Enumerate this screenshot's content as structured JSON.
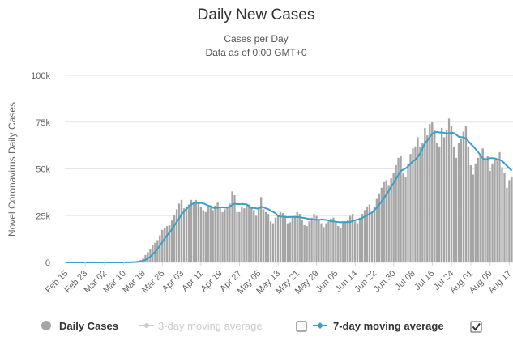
{
  "chart_data": {
    "type": "bar",
    "title": "Daily New Cases",
    "subtitle": [
      "Cases per Day",
      "Data as of 0:00 GMT+0"
    ],
    "ylabel": "Novel Coronavirus Daily Cases",
    "xlabel": "",
    "ylim": [
      0,
      100000
    ],
    "yticks": [
      0,
      25000,
      50000,
      75000,
      100000
    ],
    "ytick_labels": [
      "0",
      "25k",
      "50k",
      "75k",
      "100k"
    ],
    "grid": true,
    "legend_position": "bottom",
    "x_start": "Feb 15",
    "x_end": "Aug 18",
    "xtick_labels": [
      "Feb 15",
      "Feb 23",
      "Mar 02",
      "Mar 10",
      "Mar 18",
      "Mar 26",
      "Apr 03",
      "Apr 11",
      "Apr 19",
      "Apr 27",
      "May 05",
      "May 13",
      "May 21",
      "May 29",
      "Jun 06",
      "Jun 14",
      "Jun 22",
      "Jun 30",
      "Jul 08",
      "Jul 16",
      "Jul 24",
      "Aug 01",
      "Aug 09",
      "Aug 17"
    ],
    "xtick_trailing_partial": "Au",
    "colors": {
      "bars": "#a5a5a5",
      "bar_stroke": "#ffffff",
      "line7": "#3a9fc7",
      "line3": "#cccccc",
      "grid": "#e6e6e6"
    },
    "weekly_levels": [
      {
        "week_of": "Feb 15",
        "daily": [
          0,
          0,
          0,
          0,
          0,
          0,
          0
        ]
      },
      {
        "week_of": "Feb 22",
        "daily": [
          0,
          0,
          0,
          0,
          0,
          0,
          0
        ]
      },
      {
        "week_of": "Feb 29",
        "daily": [
          0,
          0,
          0,
          0,
          0,
          0,
          10
        ]
      },
      {
        "week_of": "Mar 07",
        "daily": [
          20,
          30,
          50,
          70,
          100,
          150,
          250
        ]
      },
      {
        "week_of": "Mar 14",
        "daily": [
          400,
          600,
          900,
          1300,
          2300,
          4000,
          5500
        ]
      },
      {
        "week_of": "Mar 21",
        "daily": [
          7000,
          9500,
          10500,
          12000,
          14500,
          17500,
          18500
        ]
      },
      {
        "week_of": "Mar 28",
        "daily": [
          19500,
          20000,
          22500,
          25500,
          28500,
          31500,
          33500
        ]
      },
      {
        "week_of": "Apr 04",
        "daily": [
          29000,
          30000,
          31000,
          33500,
          32500,
          33500,
          32000
        ]
      },
      {
        "week_of": "Apr 11",
        "daily": [
          30000,
          28000,
          27000,
          29500,
          30000,
          28000,
          30500
        ]
      },
      {
        "week_of": "Apr 18",
        "daily": [
          32000,
          29000,
          27000,
          28500,
          30000,
          31500,
          38000
        ]
      },
      {
        "week_of": "Apr 25",
        "daily": [
          36000,
          27000,
          27000,
          29500,
          29000,
          30500,
          31000
        ]
      },
      {
        "week_of": "May 02",
        "daily": [
          29000,
          28000,
          25000,
          29500,
          35000,
          28500,
          27000
        ]
      },
      {
        "week_of": "May 09",
        "daily": [
          26000,
          22000,
          21000,
          24000,
          25000,
          27000,
          26500
        ]
      },
      {
        "week_of": "May 16",
        "daily": [
          25000,
          21000,
          21500,
          24000,
          25000,
          27000,
          26000
        ]
      },
      {
        "week_of": "May 23",
        "daily": [
          23000,
          20000,
          19500,
          22000,
          24000,
          26000,
          25000
        ]
      },
      {
        "week_of": "May 30",
        "daily": [
          23000,
          21000,
          19000,
          21000,
          22000,
          23500,
          24000
        ]
      },
      {
        "week_of": "Jun 06",
        "daily": [
          22000,
          19500,
          18500,
          21500,
          22000,
          23000,
          25000
        ]
      },
      {
        "week_of": "Jun 13",
        "daily": [
          26000,
          22000,
          21000,
          24000,
          26000,
          28000,
          30000
        ]
      },
      {
        "week_of": "Jun 20",
        "daily": [
          31000,
          27000,
          30000,
          34000,
          37000,
          40000,
          43000
        ]
      },
      {
        "week_of": "Jun 27",
        "daily": [
          44000,
          41000,
          45000,
          48000,
          52000,
          56000,
          57000
        ]
      },
      {
        "week_of": "Jul 04",
        "daily": [
          48000,
          46000,
          53000,
          58000,
          61000,
          62000,
          67000
        ]
      },
      {
        "week_of": "Jul 11",
        "daily": [
          62000,
          64000,
          72000,
          68000,
          74000,
          75000,
          71000
        ]
      },
      {
        "week_of": "Jul 18",
        "daily": [
          64000,
          62000,
          72000,
          67000,
          71000,
          77000,
          73000
        ]
      },
      {
        "week_of": "Jul 25",
        "daily": [
          62000,
          56000,
          64000,
          66000,
          70000,
          73000,
          62000
        ]
      },
      {
        "week_of": "Aug 01",
        "daily": [
          52000,
          47000,
          53000,
          56000,
          58000,
          61000,
          56000
        ]
      },
      {
        "week_of": "Aug 08",
        "daily": [
          57000,
          49000,
          53000,
          55000,
          55000,
          59000,
          51000
        ]
      },
      {
        "week_of": "Aug 15",
        "daily": [
          48000,
          40000,
          44000,
          46000
        ]
      }
    ],
    "series": [
      {
        "name": "Daily Cases",
        "kind": "bar",
        "visible": true
      },
      {
        "name": "3-day moving average",
        "kind": "line",
        "visible": false
      },
      {
        "name": "7-day moving average",
        "kind": "line",
        "visible": true
      }
    ]
  },
  "legend": {
    "daily": "Daily Cases",
    "ma3": "3-day moving average",
    "ma7": "7-day moving average",
    "ma3_checked": false,
    "ma7_checked": true
  }
}
